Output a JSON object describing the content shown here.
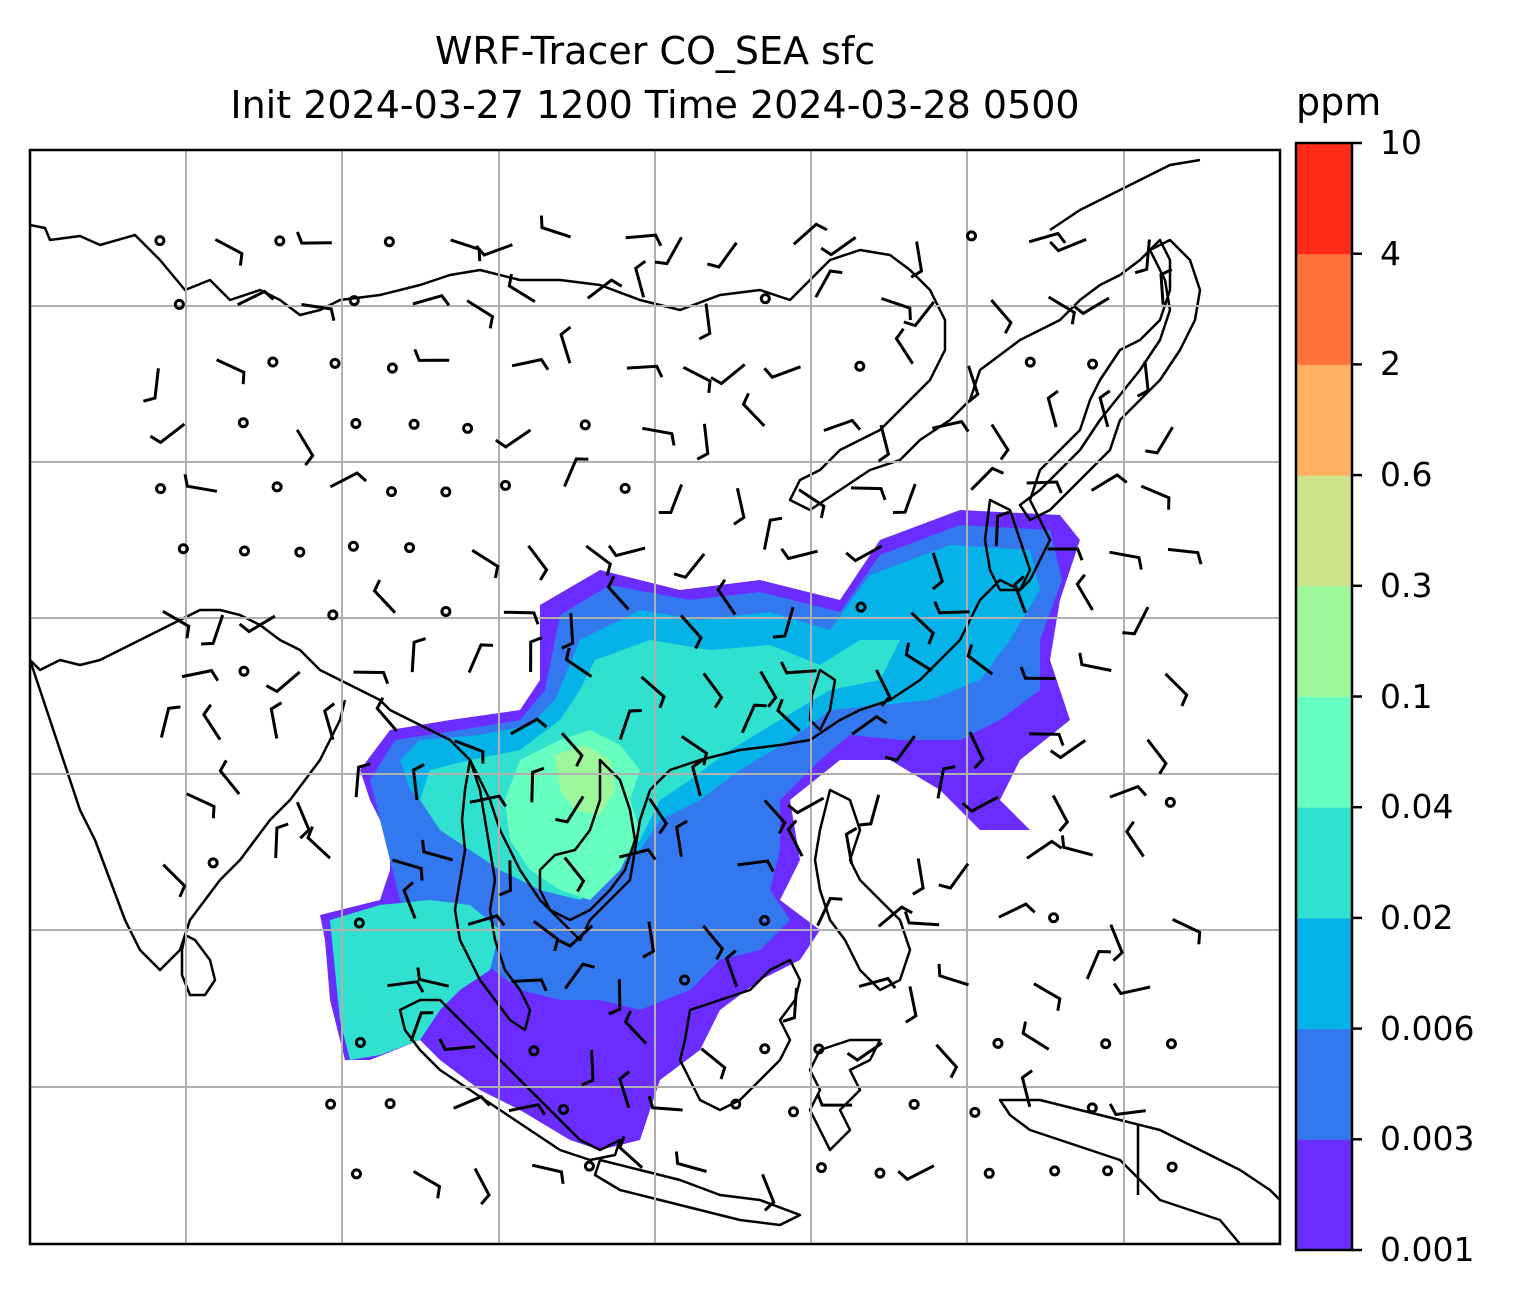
{
  "title": {
    "line1": "WRF-Tracer CO_SEA sfc",
    "line2": "Init 2024-03-27 1200 Time 2024-03-28 0500"
  },
  "colorbar": {
    "unit": "ppm",
    "levels": [
      "0.001",
      "0.003",
      "0.006",
      "0.02",
      "0.04",
      "0.1",
      "0.3",
      "0.6",
      "2",
      "4",
      "10"
    ],
    "colors": [
      "#6a2cff",
      "#3478f0",
      "#05b3e8",
      "#31e1d0",
      "#66ffc0",
      "#9cf89a",
      "#d0e28a",
      "#ffb061",
      "#ff723a",
      "#ff2b18"
    ]
  },
  "map": {
    "variable": "CO_SEA",
    "level": "sfc",
    "overlays": [
      "coastlines",
      "gridlines",
      "wind-barbs"
    ]
  }
}
